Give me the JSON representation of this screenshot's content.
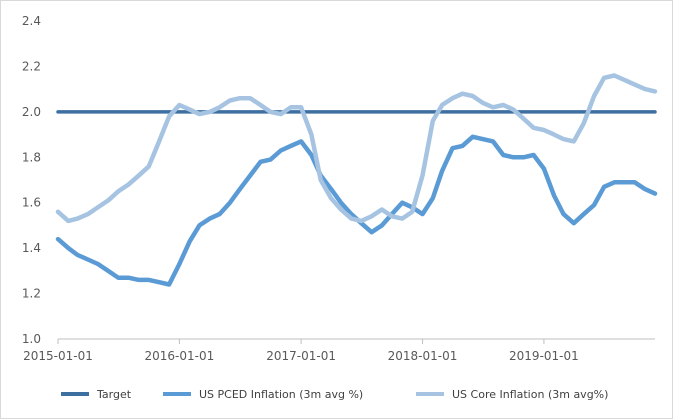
{
  "chart_data": {
    "type": "line",
    "ylim": [
      1.0,
      2.4
    ],
    "y_ticks": [
      "1.0",
      "1.2",
      "1.4",
      "1.6",
      "1.8",
      "2.0",
      "2.2",
      "2.4"
    ],
    "x_tick_labels": [
      "2015-01-01",
      "2016-01-01",
      "2017-01-01",
      "2018-01-01",
      "2019-01-01"
    ],
    "x_range": [
      "2015-01-01",
      "2019-12-01"
    ],
    "grid": false,
    "legend_position": "bottom",
    "series": [
      {
        "name": "Target",
        "color": "#3d6fa0",
        "x": [
          "2015-01-01",
          "2019-12-01"
        ],
        "values": [
          2.0,
          2.0
        ]
      },
      {
        "name": "US PCED Inflation (3m avg %)",
        "color": "#5b9bd5",
        "x": [
          "2015-01-01",
          "2015-02-01",
          "2015-03-01",
          "2015-04-01",
          "2015-05-01",
          "2015-06-01",
          "2015-07-01",
          "2015-08-01",
          "2015-09-01",
          "2015-10-01",
          "2015-11-01",
          "2015-12-01",
          "2016-01-01",
          "2016-02-01",
          "2016-03-01",
          "2016-04-01",
          "2016-05-01",
          "2016-06-01",
          "2016-07-01",
          "2016-08-01",
          "2016-09-01",
          "2016-10-01",
          "2016-11-01",
          "2016-12-01",
          "2017-01-01",
          "2017-02-01",
          "2017-03-01",
          "2017-04-01",
          "2017-05-01",
          "2017-06-01",
          "2017-07-01",
          "2017-08-01",
          "2017-09-01",
          "2017-10-01",
          "2017-11-01",
          "2017-12-01",
          "2018-01-01",
          "2018-02-01",
          "2018-03-01",
          "2018-04-01",
          "2018-05-01",
          "2018-06-01",
          "2018-07-01",
          "2018-08-01",
          "2018-09-01",
          "2018-10-01",
          "2018-11-01",
          "2018-12-01",
          "2019-01-01",
          "2019-02-01",
          "2019-03-01",
          "2019-04-01",
          "2019-05-01",
          "2019-06-01",
          "2019-07-01",
          "2019-08-01",
          "2019-09-01",
          "2019-10-01",
          "2019-11-01",
          "2019-12-01"
        ],
        "values": [
          1.44,
          1.4,
          1.37,
          1.35,
          1.33,
          1.3,
          1.27,
          1.27,
          1.26,
          1.26,
          1.25,
          1.24,
          1.33,
          1.43,
          1.5,
          1.53,
          1.55,
          1.6,
          1.66,
          1.72,
          1.78,
          1.79,
          1.83,
          1.85,
          1.87,
          1.81,
          1.72,
          1.66,
          1.6,
          1.55,
          1.51,
          1.47,
          1.5,
          1.55,
          1.6,
          1.58,
          1.55,
          1.62,
          1.74,
          1.84,
          1.85,
          1.89,
          1.88,
          1.87,
          1.81,
          1.8,
          1.8,
          1.81,
          1.75,
          1.63,
          1.55,
          1.51,
          1.55,
          1.59,
          1.67,
          1.69,
          1.69,
          1.69,
          1.66,
          1.64
        ]
      },
      {
        "name": "US Core Inflation (3m avg%)",
        "color": "#a6c4e2",
        "x": [
          "2015-01-01",
          "2015-02-01",
          "2015-03-01",
          "2015-04-01",
          "2015-05-01",
          "2015-06-01",
          "2015-07-01",
          "2015-08-01",
          "2015-09-01",
          "2015-10-01",
          "2015-11-01",
          "2015-12-01",
          "2016-01-01",
          "2016-02-01",
          "2016-03-01",
          "2016-04-01",
          "2016-05-01",
          "2016-06-01",
          "2016-07-01",
          "2016-08-01",
          "2016-09-01",
          "2016-10-01",
          "2016-11-01",
          "2016-12-01",
          "2017-01-01",
          "2017-02-01",
          "2017-03-01",
          "2017-04-01",
          "2017-05-01",
          "2017-06-01",
          "2017-07-01",
          "2017-08-01",
          "2017-09-01",
          "2017-10-01",
          "2017-11-01",
          "2017-12-01",
          "2018-01-01",
          "2018-02-01",
          "2018-03-01",
          "2018-04-01",
          "2018-05-01",
          "2018-06-01",
          "2018-07-01",
          "2018-08-01",
          "2018-09-01",
          "2018-10-01",
          "2018-11-01",
          "2018-12-01",
          "2019-01-01",
          "2019-02-01",
          "2019-03-01",
          "2019-04-01",
          "2019-05-01",
          "2019-06-01",
          "2019-07-01",
          "2019-08-01",
          "2019-09-01",
          "2019-10-01",
          "2019-11-01",
          "2019-12-01"
        ],
        "values": [
          1.56,
          1.52,
          1.53,
          1.55,
          1.58,
          1.61,
          1.65,
          1.68,
          1.72,
          1.76,
          1.87,
          1.98,
          2.03,
          2.01,
          1.99,
          2.0,
          2.02,
          2.05,
          2.06,
          2.06,
          2.03,
          2.0,
          1.99,
          2.02,
          2.02,
          1.9,
          1.7,
          1.62,
          1.57,
          1.53,
          1.52,
          1.54,
          1.57,
          1.54,
          1.53,
          1.56,
          1.72,
          1.96,
          2.03,
          2.06,
          2.08,
          2.07,
          2.04,
          2.02,
          2.03,
          2.01,
          1.97,
          1.93,
          1.92,
          1.9,
          1.88,
          1.87,
          1.95,
          2.07,
          2.15,
          2.16,
          2.14,
          2.12,
          2.1,
          2.09
        ]
      }
    ]
  }
}
